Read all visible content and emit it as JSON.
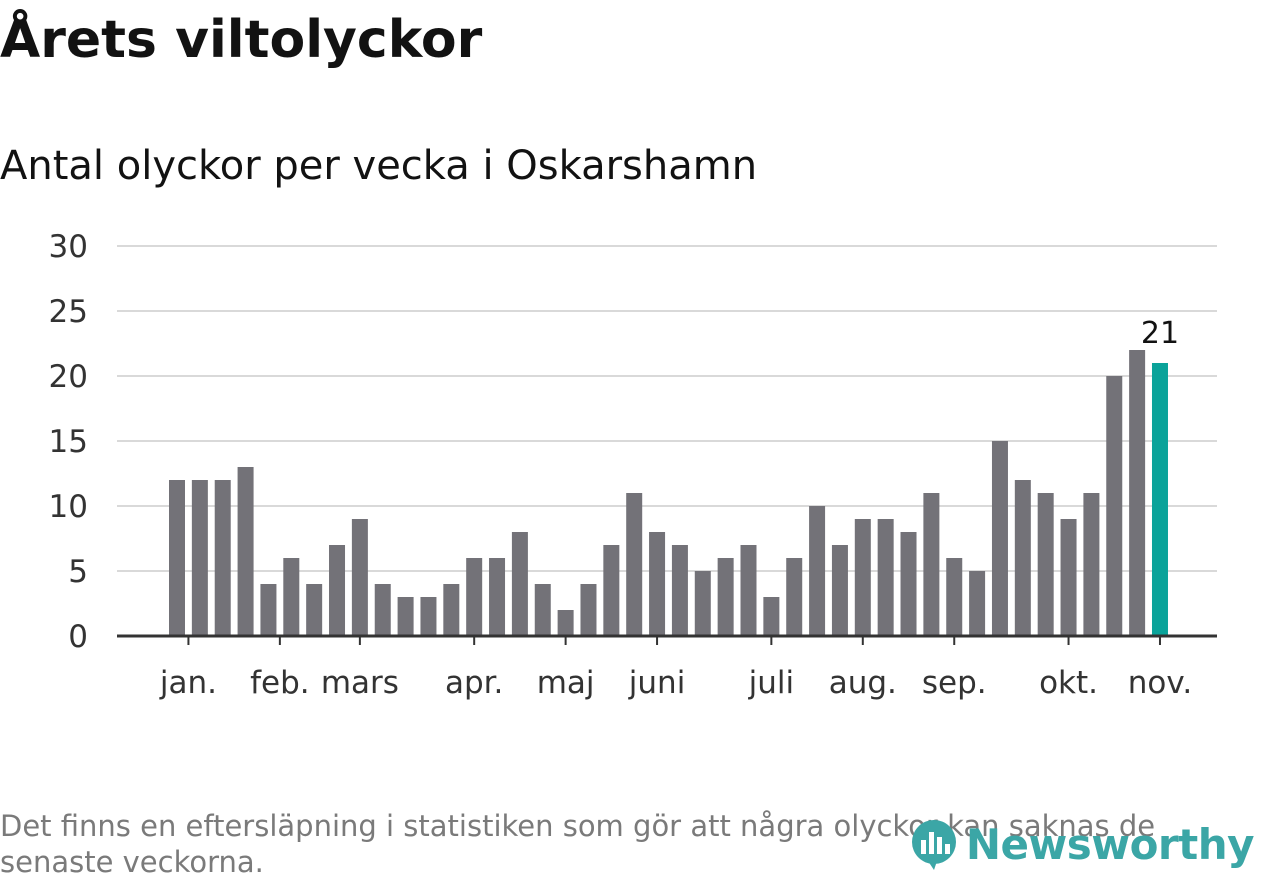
{
  "title": "Årets viltolyckor",
  "subtitle": "Antal olyckor per vecka i Oskarshamn",
  "note": "Det finns en eftersläpning i statistiken som gör att några olyckor kan saknas de senaste veckorna.",
  "brand": {
    "name": "Newsworthy",
    "color": "#3ba6a6"
  },
  "colors": {
    "bar": "#737278",
    "highlight": "#0aa39a",
    "grid": "#d9d9d9",
    "axis": "#333333"
  },
  "chart_data": {
    "type": "bar",
    "title": "Antal olyckor per vecka i Oskarshamn",
    "xlabel": "",
    "ylabel": "",
    "ylim": [
      0,
      30
    ],
    "yticks": [
      0,
      5,
      10,
      15,
      20,
      25,
      30
    ],
    "grid": true,
    "weeks": [
      1,
      2,
      3,
      4,
      5,
      6,
      7,
      8,
      9,
      10,
      11,
      12,
      13,
      14,
      15,
      16,
      17,
      18,
      19,
      20,
      21,
      22,
      23,
      24,
      25,
      26,
      27,
      28,
      29,
      30,
      31,
      32,
      33,
      34,
      35,
      36,
      37,
      38,
      39,
      40,
      41,
      42,
      43,
      44
    ],
    "values": [
      12,
      12,
      12,
      13,
      4,
      6,
      4,
      7,
      9,
      4,
      3,
      3,
      4,
      6,
      6,
      8,
      4,
      2,
      4,
      7,
      11,
      8,
      7,
      5,
      6,
      7,
      3,
      6,
      10,
      7,
      9,
      9,
      8,
      11,
      6,
      5,
      15,
      12,
      11,
      9,
      11,
      20,
      22,
      21
    ],
    "highlight_index": 43,
    "highlight_label": "21",
    "month_labels": [
      {
        "label": "jan.",
        "at_week": 1.5
      },
      {
        "label": "feb.",
        "at_week": 5.5
      },
      {
        "label": "mars",
        "at_week": 9.0
      },
      {
        "label": "apr.",
        "at_week": 14.0
      },
      {
        "label": "maj",
        "at_week": 18.0
      },
      {
        "label": "juni",
        "at_week": 22.0
      },
      {
        "label": "juli",
        "at_week": 27.0
      },
      {
        "label": "aug.",
        "at_week": 31.0
      },
      {
        "label": "sep.",
        "at_week": 35.0
      },
      {
        "label": "okt.",
        "at_week": 40.0
      },
      {
        "label": "nov.",
        "at_week": 44.0
      }
    ]
  }
}
